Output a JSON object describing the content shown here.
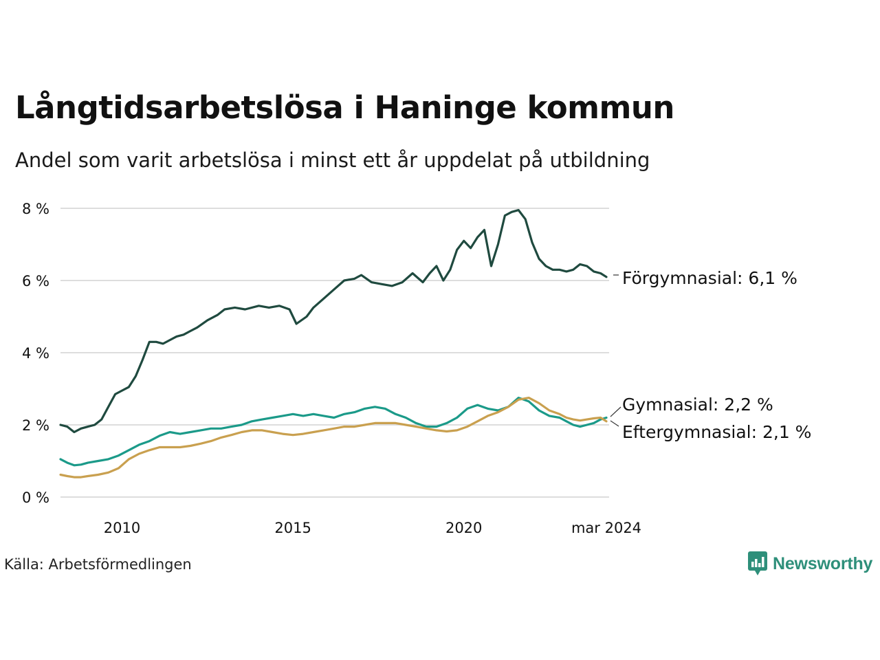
{
  "title": "Långtidsarbetslösa i Haninge kommun",
  "subtitle": "Andel som varit arbetslösa i minst ett år uppdelat på utbildning",
  "source": "Källa: Arbetsförmedlingen",
  "brand": {
    "name": "Newsworthy",
    "icon": "newsworthy-logo-icon",
    "color": "#2e8f7a"
  },
  "colors": {
    "forgymnasial": "#1f4a3f",
    "gymnasial": "#1b9a89",
    "eftergymnasial": "#c9a04f",
    "grid": "#dddddd"
  },
  "chart_data": {
    "type": "line",
    "title": "Långtidsarbetslösa i Haninge kommun",
    "xlabel": "",
    "ylabel": "",
    "xlim": [
      2008.2,
      2024.25
    ],
    "ylim": [
      0,
      8
    ],
    "y_ticks": [
      0,
      2,
      4,
      6,
      8
    ],
    "y_tick_labels": [
      "0 %",
      "2 %",
      "4 %",
      "6 %",
      "8 %"
    ],
    "x_ticks": [
      2010,
      2015,
      2020,
      2024.17
    ],
    "x_tick_labels": [
      "2010",
      "2015",
      "2020",
      "mar 2024"
    ],
    "grid": true,
    "series": [
      {
        "name": "Förgymnasial",
        "label": "Förgymnasial: 6,1 %",
        "color": "#1f4a3f",
        "x": [
          2008.2,
          2008.4,
          2008.6,
          2008.8,
          2009.0,
          2009.2,
          2009.4,
          2009.6,
          2009.8,
          2010.0,
          2010.2,
          2010.4,
          2010.6,
          2010.8,
          2011.0,
          2011.2,
          2011.4,
          2011.6,
          2011.8,
          2012.0,
          2012.2,
          2012.5,
          2012.8,
          2013.0,
          2013.3,
          2013.6,
          2014.0,
          2014.3,
          2014.6,
          2014.9,
          2015.1,
          2015.4,
          2015.6,
          2015.9,
          2016.2,
          2016.5,
          2016.8,
          2017.0,
          2017.3,
          2017.6,
          2017.9,
          2018.2,
          2018.5,
          2018.8,
          2019.0,
          2019.2,
          2019.4,
          2019.6,
          2019.8,
          2020.0,
          2020.2,
          2020.4,
          2020.6,
          2020.8,
          2021.0,
          2021.2,
          2021.4,
          2021.6,
          2021.8,
          2022.0,
          2022.2,
          2022.4,
          2022.6,
          2022.8,
          2023.0,
          2023.2,
          2023.4,
          2023.6,
          2023.8,
          2024.0,
          2024.17
        ],
        "values": [
          2.0,
          1.95,
          1.8,
          1.9,
          1.95,
          2.0,
          2.15,
          2.5,
          2.85,
          2.95,
          3.05,
          3.35,
          3.8,
          4.3,
          4.3,
          4.25,
          4.35,
          4.45,
          4.5,
          4.6,
          4.7,
          4.9,
          5.05,
          5.2,
          5.25,
          5.2,
          5.3,
          5.25,
          5.3,
          5.2,
          4.8,
          5.0,
          5.25,
          5.5,
          5.75,
          6.0,
          6.05,
          6.15,
          5.95,
          5.9,
          5.85,
          5.95,
          6.2,
          5.95,
          6.2,
          6.4,
          6.0,
          6.3,
          6.85,
          7.1,
          6.9,
          7.2,
          7.4,
          6.4,
          7.0,
          7.8,
          7.9,
          7.95,
          7.7,
          7.05,
          6.6,
          6.4,
          6.3,
          6.3,
          6.25,
          6.3,
          6.45,
          6.4,
          6.25,
          6.2,
          6.1
        ]
      },
      {
        "name": "Gymnasial",
        "label": "Gymnasial: 2,2 %",
        "color": "#1b9a89",
        "x": [
          2008.2,
          2008.4,
          2008.6,
          2008.8,
          2009.0,
          2009.3,
          2009.6,
          2009.9,
          2010.2,
          2010.5,
          2010.8,
          2011.1,
          2011.4,
          2011.7,
          2012.0,
          2012.3,
          2012.6,
          2012.9,
          2013.2,
          2013.5,
          2013.8,
          2014.1,
          2014.4,
          2014.7,
          2015.0,
          2015.3,
          2015.6,
          2015.9,
          2016.2,
          2016.5,
          2016.8,
          2017.1,
          2017.4,
          2017.7,
          2018.0,
          2018.3,
          2018.6,
          2018.9,
          2019.2,
          2019.5,
          2019.8,
          2020.1,
          2020.4,
          2020.7,
          2021.0,
          2021.3,
          2021.6,
          2021.9,
          2022.2,
          2022.5,
          2022.8,
          2023.0,
          2023.2,
          2023.4,
          2023.6,
          2023.8,
          2024.0,
          2024.17
        ],
        "values": [
          1.05,
          0.95,
          0.88,
          0.9,
          0.95,
          1.0,
          1.05,
          1.15,
          1.3,
          1.45,
          1.55,
          1.7,
          1.8,
          1.75,
          1.8,
          1.85,
          1.9,
          1.9,
          1.95,
          2.0,
          2.1,
          2.15,
          2.2,
          2.25,
          2.3,
          2.25,
          2.3,
          2.25,
          2.2,
          2.3,
          2.35,
          2.45,
          2.5,
          2.45,
          2.3,
          2.2,
          2.05,
          1.95,
          1.95,
          2.05,
          2.2,
          2.45,
          2.55,
          2.45,
          2.4,
          2.5,
          2.75,
          2.65,
          2.4,
          2.25,
          2.2,
          2.1,
          2.0,
          1.95,
          2.0,
          2.05,
          2.15,
          2.2
        ]
      },
      {
        "name": "Eftergymnasial",
        "label": "Eftergymnasial: 2,1 %",
        "color": "#c9a04f",
        "x": [
          2008.2,
          2008.4,
          2008.6,
          2008.8,
          2009.0,
          2009.3,
          2009.6,
          2009.9,
          2010.2,
          2010.5,
          2010.8,
          2011.1,
          2011.4,
          2011.7,
          2012.0,
          2012.3,
          2012.6,
          2012.9,
          2013.2,
          2013.5,
          2013.8,
          2014.1,
          2014.4,
          2014.7,
          2015.0,
          2015.3,
          2015.6,
          2015.9,
          2016.2,
          2016.5,
          2016.8,
          2017.1,
          2017.4,
          2017.7,
          2018.0,
          2018.3,
          2018.6,
          2018.9,
          2019.2,
          2019.5,
          2019.8,
          2020.1,
          2020.4,
          2020.7,
          2021.0,
          2021.3,
          2021.6,
          2021.9,
          2022.2,
          2022.5,
          2022.8,
          2023.0,
          2023.2,
          2023.4,
          2023.6,
          2023.8,
          2024.0,
          2024.17
        ],
        "values": [
          0.62,
          0.58,
          0.55,
          0.55,
          0.58,
          0.62,
          0.68,
          0.8,
          1.05,
          1.2,
          1.3,
          1.38,
          1.38,
          1.38,
          1.42,
          1.48,
          1.55,
          1.65,
          1.72,
          1.8,
          1.85,
          1.85,
          1.8,
          1.75,
          1.72,
          1.75,
          1.8,
          1.85,
          1.9,
          1.95,
          1.95,
          2.0,
          2.05,
          2.05,
          2.05,
          2.0,
          1.95,
          1.9,
          1.85,
          1.82,
          1.85,
          1.95,
          2.1,
          2.25,
          2.35,
          2.5,
          2.7,
          2.75,
          2.6,
          2.4,
          2.3,
          2.2,
          2.15,
          2.12,
          2.15,
          2.18,
          2.2,
          2.1
        ]
      }
    ]
  }
}
